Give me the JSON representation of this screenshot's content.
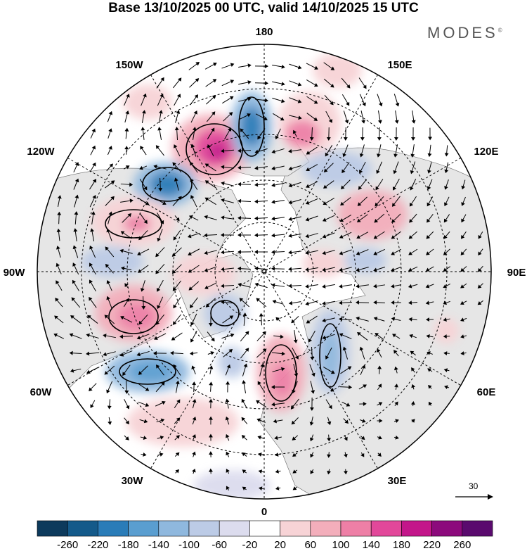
{
  "title": "Base 13/10/2025 00 UTC, valid 14/10/2025 15 UTC",
  "brand": "MODES",
  "brand_mark": "©",
  "longitude_labels": {
    "top": "180",
    "bottom": "0",
    "left": "90W",
    "right": "90E",
    "w150": "150W",
    "e150": "150E",
    "w120": "120W",
    "e120": "120E",
    "w60": "60W",
    "e60": "60E",
    "w30": "30W",
    "e30": "30E"
  },
  "reference_vector": "30",
  "colorbar": {
    "labels": [
      "-260",
      "-220",
      "-180",
      "-140",
      "-100",
      "-60",
      "-20",
      "20",
      "60",
      "100",
      "140",
      "180",
      "220",
      "260"
    ],
    "colors": [
      "#0d3a5c",
      "#145a8a",
      "#2a7cb8",
      "#5a9ed0",
      "#8fb8de",
      "#bccbe6",
      "#dcdcee",
      "#ffffff",
      "#f7d3d6",
      "#f3aebb",
      "#ee7fa6",
      "#e2489a",
      "#c3168a",
      "#8c0a7c",
      "#5a0a6e"
    ]
  },
  "colors": {
    "land": "#e6e6e6",
    "ocean": "#ffffff",
    "grid": "#000000"
  }
}
